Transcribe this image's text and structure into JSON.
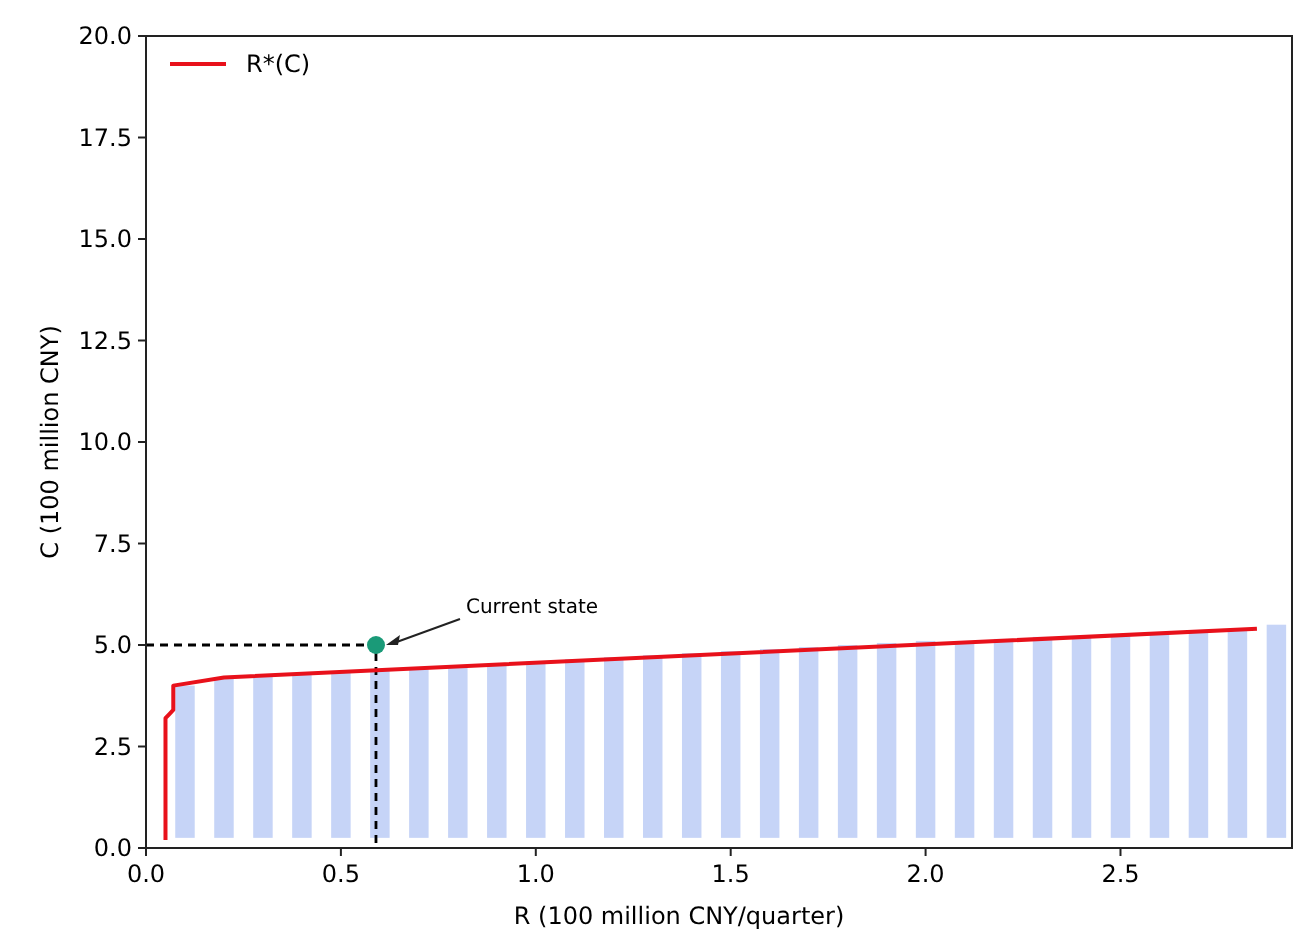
{
  "chart_data": {
    "type": "line",
    "xlabel": "R (100 million CNY/quarter)",
    "ylabel": "C (100 million CNY)",
    "xlim": [
      0,
      2.94
    ],
    "ylim": [
      0,
      20
    ],
    "xticks": [
      {
        "value": 0,
        "label": "0.0"
      },
      {
        "value": 0.5,
        "label": "0.5"
      },
      {
        "value": 1,
        "label": "1.0"
      },
      {
        "value": 1.5,
        "label": "1.5"
      },
      {
        "value": 2,
        "label": "2.0"
      },
      {
        "value": 2.5,
        "label": "2.5"
      }
    ],
    "yticks": [
      {
        "value": 0,
        "label": "0.0"
      },
      {
        "value": 2.5,
        "label": "2.5"
      },
      {
        "value": 5,
        "label": "5.0"
      },
      {
        "value": 7.5,
        "label": "7.5"
      },
      {
        "value": 10,
        "label": "10.0"
      },
      {
        "value": 12.5,
        "label": "12.5"
      },
      {
        "value": 15,
        "label": "15.0"
      },
      {
        "value": 17.5,
        "label": "17.5"
      },
      {
        "value": 20,
        "label": "20.0"
      }
    ],
    "grid": false,
    "legend": "top left",
    "series": [
      {
        "type": "bar",
        "color": "#c6d4f7",
        "x": [
          0.1,
          0.2,
          0.3,
          0.4,
          0.5,
          0.6,
          0.7,
          0.8,
          0.9,
          1.0,
          1.1,
          1.2,
          1.3,
          1.4,
          1.5,
          1.6,
          1.7,
          1.8,
          1.9,
          2.0,
          2.1,
          2.2,
          2.3,
          2.4,
          2.5,
          2.6,
          2.7,
          2.8,
          2.9
        ],
        "base": [
          0.25,
          0.25,
          0.25,
          0.25,
          0.25,
          0.25,
          0.25,
          0.25,
          0.25,
          0.25,
          0.25,
          0.25,
          0.25,
          0.25,
          0.25,
          0.25,
          0.25,
          0.25,
          0.25,
          0.25,
          0.25,
          0.25,
          0.25,
          0.25,
          0.25,
          0.25,
          0.25,
          0.25,
          0.25
        ],
        "values": [
          3.75,
          3.95,
          4.0,
          4.05,
          4.1,
          4.15,
          4.2,
          4.25,
          4.3,
          4.35,
          4.4,
          4.45,
          4.5,
          4.55,
          4.6,
          4.65,
          4.7,
          4.75,
          4.8,
          4.85,
          4.85,
          4.9,
          4.95,
          4.95,
          5.0,
          5.05,
          5.1,
          5.15,
          5.25
        ]
      },
      {
        "color": "#000000",
        "line_style": "dashed",
        "x": [
          0,
          0.59,
          0.59
        ],
        "values": [
          5,
          5,
          0
        ]
      },
      {
        "name": "R*(C)",
        "color": "#e8111b",
        "line_style": "solid",
        "x": [
          0.05,
          0.05,
          0.06,
          0.07,
          0.07,
          0.2,
          2.85
        ],
        "values": [
          0.2,
          3.2,
          3.3,
          3.4,
          4.0,
          4.2,
          5.4
        ]
      },
      {
        "type": "scatter",
        "color": "#1a9a78",
        "marker": "circle",
        "x": [
          0.59
        ],
        "values": [
          5
        ]
      }
    ],
    "annotations": [
      "Current state"
    ]
  }
}
